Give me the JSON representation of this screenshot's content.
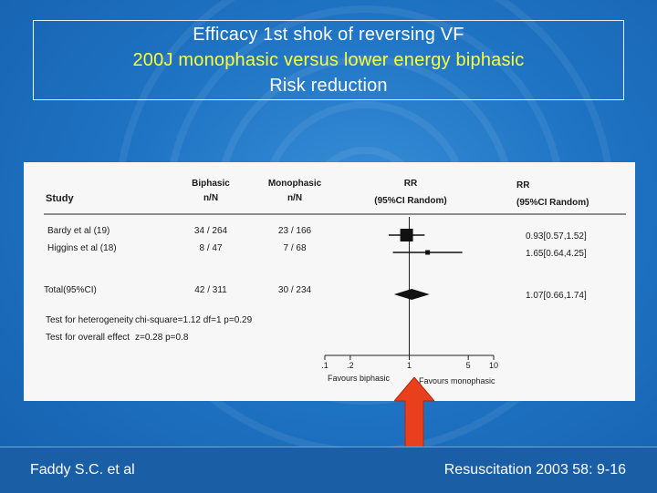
{
  "slide": {
    "title_line1": "Efficacy 1st shok of reversing VF",
    "title_line2": "200J monophasic versus lower energy biphasic",
    "title_line3": "Risk reduction"
  },
  "footer": {
    "left": "Faddy S.C. et al",
    "right": "Resuscitation 2003 58: 9-16"
  },
  "colors": {
    "background": "#1f74c4",
    "title_yellow": "#ffff33",
    "arrow": "#e8401c",
    "panel": "#f7f7f7"
  },
  "chart_data": {
    "type": "forest",
    "headers": {
      "study": "Study",
      "biphasic": [
        "Biphasic",
        "n/N"
      ],
      "monophasic": [
        "Monophasic",
        "n/N"
      ],
      "rr_plot": [
        "RR",
        "(95%CI Random)"
      ],
      "rr_text": [
        "RR",
        "(95%CI Random)"
      ]
    },
    "studies": [
      {
        "label": "Bardy et al (19)",
        "biphasic": "34 / 264",
        "monophasic": "23 / 166",
        "rr": 0.93,
        "ci": [
          0.57,
          1.52
        ],
        "rr_text": "0.93[0.57,1.52]"
      },
      {
        "label": "Higgins et al (18)",
        "biphasic": "8 / 47",
        "monophasic": "7 / 68",
        "rr": 1.65,
        "ci": [
          0.64,
          4.25
        ],
        "rr_text": "1.65[0.64,4.25]"
      }
    ],
    "total": {
      "label": "Total(95%CI)",
      "biphasic": "42 / 311",
      "monophasic": "30 / 234",
      "rr": 1.07,
      "ci": [
        0.66,
        1.74
      ],
      "rr_text": "1.07[0.66,1.74]"
    },
    "heterogeneity": {
      "label": "Test for heterogeneity",
      "stat": "chi-square=1.12  df=1  p=0.29"
    },
    "overall": {
      "label": "Test for overall effect",
      "stat": "z=0.28  p=0.8"
    },
    "x_scale": "log",
    "x_ticks": [
      {
        "value": 0.1,
        "label": ".1"
      },
      {
        "value": 0.2,
        "label": ".2"
      },
      {
        "value": 1,
        "label": "1"
      },
      {
        "value": 5,
        "label": "5"
      },
      {
        "value": 10,
        "label": "10"
      }
    ],
    "xlim": [
      0.1,
      10
    ],
    "favours_left": "Favours biphasic",
    "favours_right": "Favours monophasic"
  }
}
